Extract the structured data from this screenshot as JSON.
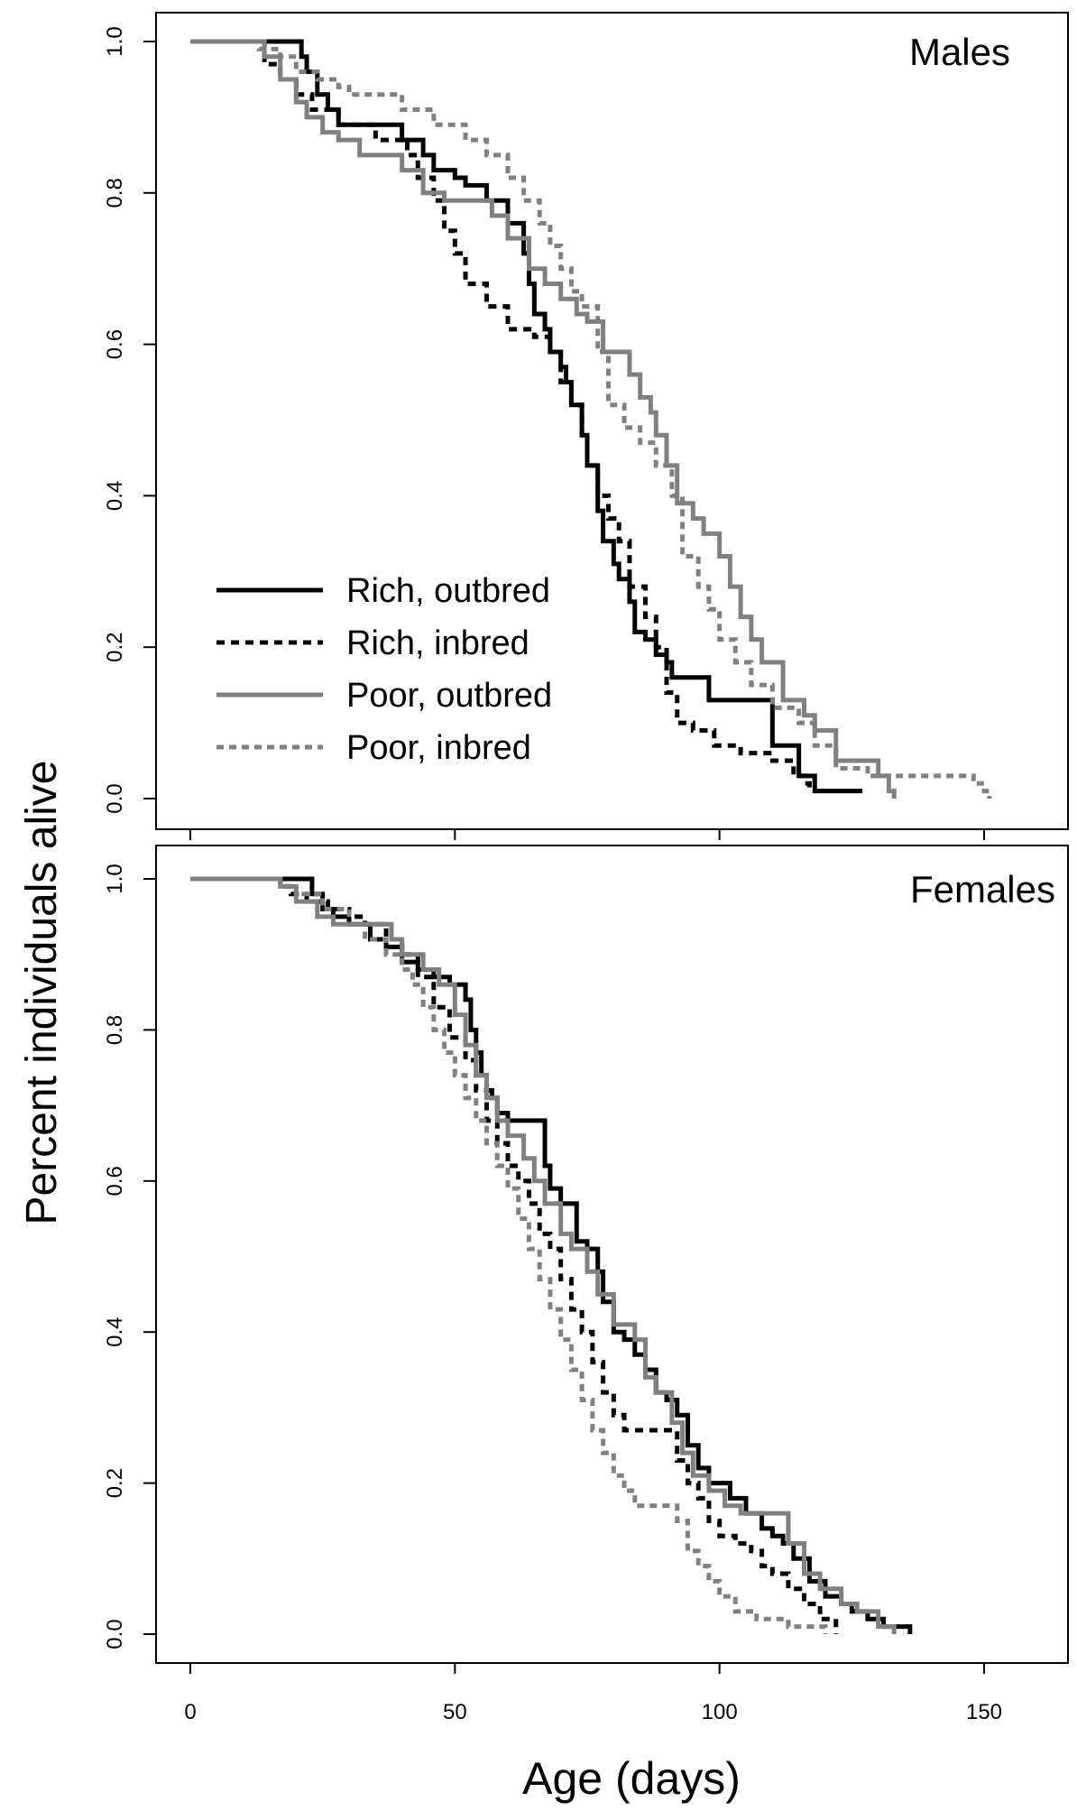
{
  "figure": {
    "ylabel": "Percent individuals alive",
    "xlabel": "Age (days)"
  },
  "chart_data": [
    {
      "type": "line",
      "step": true,
      "panel_label": "Males",
      "xlim": [
        0,
        165
      ],
      "ylim": [
        0,
        1
      ],
      "x_ticks": [
        0,
        50,
        100,
        150
      ],
      "x_tick_labels": [
        "",
        "",
        "",
        ""
      ],
      "y_ticks": [
        0.0,
        0.2,
        0.4,
        0.6,
        0.8,
        1.0
      ],
      "y_tick_labels": [
        "0.0",
        "0.2",
        "0.4",
        "0.6",
        "0.8",
        "1.0"
      ],
      "grid": false,
      "legend": {
        "position": "bottom-left"
      },
      "series": [
        {
          "name": "Rich, outbred",
          "color": "#000000",
          "dash": "solid",
          "x": [
            0,
            20,
            21,
            22,
            24,
            26,
            28,
            32,
            40,
            44,
            46,
            50,
            52,
            56,
            60,
            63,
            64,
            65,
            67,
            68,
            70,
            71,
            72,
            74,
            75,
            77,
            78,
            80,
            81,
            83,
            84,
            86,
            88,
            90,
            91,
            92,
            95,
            98,
            103,
            105,
            110,
            112,
            115,
            118,
            122,
            127
          ],
          "y": [
            1.0,
            1.0,
            0.98,
            0.96,
            0.93,
            0.91,
            0.89,
            0.89,
            0.87,
            0.85,
            0.83,
            0.82,
            0.81,
            0.79,
            0.76,
            0.72,
            0.68,
            0.64,
            0.62,
            0.59,
            0.57,
            0.55,
            0.52,
            0.48,
            0.44,
            0.38,
            0.34,
            0.31,
            0.29,
            0.26,
            0.22,
            0.21,
            0.19,
            0.18,
            0.16,
            0.16,
            0.16,
            0.13,
            0.13,
            0.13,
            0.07,
            0.07,
            0.03,
            0.01,
            0.01,
            0.01
          ]
        },
        {
          "name": "Rich, inbred",
          "color": "#000000",
          "dash": "dashed",
          "x": [
            0,
            14,
            17,
            20,
            23,
            28,
            35,
            41,
            43,
            46,
            48,
            50,
            52,
            56,
            60,
            65,
            68,
            70,
            72,
            74,
            75,
            77,
            79,
            81,
            83,
            86,
            88,
            90,
            92,
            95,
            99,
            104,
            110,
            114,
            116,
            117
          ],
          "y": [
            1.0,
            0.97,
            0.95,
            0.93,
            0.91,
            0.89,
            0.87,
            0.85,
            0.82,
            0.79,
            0.75,
            0.72,
            0.68,
            0.65,
            0.62,
            0.61,
            0.59,
            0.55,
            0.52,
            0.48,
            0.44,
            0.4,
            0.37,
            0.34,
            0.28,
            0.24,
            0.2,
            0.14,
            0.1,
            0.09,
            0.07,
            0.06,
            0.05,
            0.03,
            0.02,
            0.01
          ]
        },
        {
          "name": "Poor, outbred",
          "color": "#808080",
          "dash": "solid",
          "x": [
            0,
            14,
            17,
            20,
            22,
            25,
            28,
            32,
            40,
            44,
            48,
            52,
            57,
            60,
            64,
            67,
            70,
            73,
            75,
            78,
            83,
            85,
            87,
            88,
            90,
            92,
            95,
            97,
            100,
            102,
            104,
            106,
            108,
            112,
            116,
            118,
            122,
            124,
            128,
            130,
            132,
            133
          ],
          "y": [
            1.0,
            0.98,
            0.95,
            0.92,
            0.9,
            0.88,
            0.87,
            0.85,
            0.83,
            0.8,
            0.79,
            0.79,
            0.77,
            0.74,
            0.7,
            0.68,
            0.66,
            0.64,
            0.63,
            0.59,
            0.56,
            0.53,
            0.51,
            0.48,
            0.44,
            0.39,
            0.37,
            0.35,
            0.32,
            0.28,
            0.24,
            0.21,
            0.18,
            0.13,
            0.11,
            0.09,
            0.05,
            0.05,
            0.05,
            0.03,
            0.01,
            0.0
          ]
        },
        {
          "name": "Poor, inbred",
          "color": "#808080",
          "dash": "dotted",
          "x": [
            0,
            13,
            17,
            20,
            24,
            28,
            30,
            40,
            46,
            52,
            56,
            60,
            63,
            66,
            68,
            70,
            72,
            74,
            77,
            79,
            82,
            85,
            88,
            91,
            93,
            96,
            98,
            100,
            103,
            106,
            110,
            115,
            118,
            122,
            128,
            135,
            140,
            148,
            150,
            151
          ],
          "y": [
            1.0,
            0.99,
            0.98,
            0.96,
            0.95,
            0.94,
            0.93,
            0.91,
            0.89,
            0.87,
            0.85,
            0.82,
            0.79,
            0.76,
            0.73,
            0.7,
            0.67,
            0.65,
            0.59,
            0.52,
            0.49,
            0.47,
            0.44,
            0.4,
            0.32,
            0.28,
            0.25,
            0.21,
            0.18,
            0.15,
            0.12,
            0.1,
            0.07,
            0.04,
            0.03,
            0.03,
            0.03,
            0.02,
            0.01,
            0.0
          ]
        }
      ]
    },
    {
      "type": "line",
      "step": true,
      "panel_label": "Females",
      "xlim": [
        0,
        165
      ],
      "ylim": [
        0,
        1
      ],
      "x_ticks": [
        0,
        50,
        100,
        150
      ],
      "x_tick_labels": [
        "0",
        "50",
        "100",
        "150"
      ],
      "y_ticks": [
        0.0,
        0.2,
        0.4,
        0.6,
        0.8,
        1.0
      ],
      "y_tick_labels": [
        "0.0",
        "0.2",
        "0.4",
        "0.6",
        "0.8",
        "1.0"
      ],
      "grid": false,
      "series": [
        {
          "name": "Rich, outbred",
          "color": "#000000",
          "dash": "solid",
          "x": [
            0,
            23,
            25,
            27,
            30,
            34,
            37,
            40,
            43,
            46,
            49,
            52,
            53,
            54,
            55,
            56,
            57,
            58,
            60,
            63,
            67,
            68,
            70,
            73,
            75,
            77,
            78,
            80,
            82,
            84,
            86,
            88,
            90,
            92,
            94,
            96,
            98,
            102,
            105,
            108,
            110,
            112,
            114,
            117,
            120,
            123,
            125,
            128,
            131,
            135,
            136
          ],
          "y": [
            1.0,
            0.98,
            0.96,
            0.95,
            0.94,
            0.92,
            0.91,
            0.89,
            0.88,
            0.87,
            0.86,
            0.84,
            0.8,
            0.77,
            0.74,
            0.72,
            0.71,
            0.69,
            0.68,
            0.68,
            0.62,
            0.59,
            0.57,
            0.52,
            0.51,
            0.48,
            0.44,
            0.4,
            0.39,
            0.37,
            0.35,
            0.32,
            0.31,
            0.29,
            0.25,
            0.22,
            0.2,
            0.18,
            0.16,
            0.14,
            0.13,
            0.12,
            0.1,
            0.07,
            0.05,
            0.04,
            0.03,
            0.02,
            0.01,
            0.01,
            0.0
          ]
        },
        {
          "name": "Rich, inbred",
          "color": "#000000",
          "dash": "dashed",
          "x": [
            0,
            17,
            19,
            22,
            26,
            30,
            33,
            37,
            40,
            43,
            46,
            49,
            52,
            54,
            56,
            58,
            60,
            62,
            64,
            66,
            68,
            70,
            72,
            74,
            76,
            78,
            80,
            82,
            84,
            86,
            90,
            92,
            94,
            96,
            98,
            100,
            103,
            106,
            108,
            110,
            113,
            116,
            119,
            122
          ],
          "y": [
            1.0,
            0.99,
            0.98,
            0.97,
            0.96,
            0.95,
            0.94,
            0.92,
            0.9,
            0.87,
            0.83,
            0.79,
            0.76,
            0.72,
            0.68,
            0.65,
            0.62,
            0.6,
            0.57,
            0.53,
            0.51,
            0.47,
            0.43,
            0.4,
            0.36,
            0.32,
            0.29,
            0.27,
            0.27,
            0.27,
            0.27,
            0.23,
            0.2,
            0.18,
            0.15,
            0.13,
            0.12,
            0.11,
            0.09,
            0.08,
            0.06,
            0.04,
            0.02,
            0.0
          ]
        },
        {
          "name": "Poor, outbred",
          "color": "#808080",
          "dash": "solid",
          "x": [
            0,
            17,
            20,
            24,
            27,
            31,
            38,
            40,
            44,
            47,
            50,
            52,
            54,
            56,
            58,
            60,
            63,
            65,
            67,
            70,
            72,
            75,
            77,
            80,
            84,
            86,
            88,
            91,
            93,
            95,
            98,
            101,
            104,
            106,
            110,
            113,
            116,
            119,
            123,
            126,
            130,
            133
          ],
          "y": [
            1.0,
            0.99,
            0.97,
            0.95,
            0.94,
            0.94,
            0.92,
            0.9,
            0.88,
            0.86,
            0.82,
            0.78,
            0.74,
            0.71,
            0.68,
            0.66,
            0.63,
            0.6,
            0.57,
            0.53,
            0.51,
            0.48,
            0.45,
            0.41,
            0.39,
            0.34,
            0.32,
            0.28,
            0.24,
            0.21,
            0.19,
            0.17,
            0.16,
            0.16,
            0.16,
            0.12,
            0.08,
            0.06,
            0.04,
            0.03,
            0.01,
            0.0
          ]
        },
        {
          "name": "Poor, inbred",
          "color": "#808080",
          "dash": "dotted",
          "x": [
            0,
            17,
            20,
            25,
            30,
            33,
            37,
            40,
            42,
            44,
            46,
            48,
            50,
            52,
            54,
            56,
            58,
            60,
            62,
            64,
            66,
            68,
            70,
            72,
            74,
            76,
            78,
            80,
            82,
            84,
            86,
            88,
            90,
            92,
            94,
            96,
            98,
            100,
            103,
            107,
            110,
            113,
            116,
            120
          ],
          "y": [
            1.0,
            0.99,
            0.98,
            0.96,
            0.94,
            0.92,
            0.9,
            0.88,
            0.86,
            0.83,
            0.8,
            0.77,
            0.74,
            0.71,
            0.68,
            0.65,
            0.62,
            0.59,
            0.55,
            0.51,
            0.47,
            0.43,
            0.39,
            0.35,
            0.31,
            0.27,
            0.24,
            0.21,
            0.19,
            0.17,
            0.17,
            0.17,
            0.17,
            0.15,
            0.11,
            0.09,
            0.07,
            0.05,
            0.03,
            0.02,
            0.02,
            0.01,
            0.01,
            0.0
          ]
        }
      ]
    }
  ]
}
